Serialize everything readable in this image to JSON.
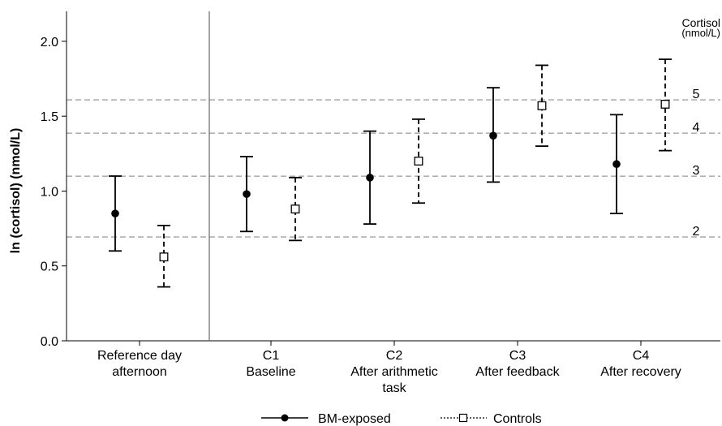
{
  "chart_data": {
    "type": "scatter",
    "ylabel": "ln (cortisol) (nmol/L)",
    "ylim": [
      0.0,
      2.2
    ],
    "yticks": [
      "0.0",
      "0.5",
      "1.0",
      "1.5",
      "2.0"
    ],
    "grid": false,
    "legend_position": "bottom",
    "categories": [
      {
        "lines": [
          "Reference day",
          "afternoon"
        ]
      },
      {
        "lines": [
          "C1",
          "Baseline"
        ]
      },
      {
        "lines": [
          "C2",
          "After arithmetic",
          "task"
        ]
      },
      {
        "lines": [
          "C3",
          "After feedback"
        ]
      },
      {
        "lines": [
          "C4",
          "After recovery"
        ]
      }
    ],
    "series": [
      {
        "name": "BM-exposed",
        "marker": "filled-circle",
        "line_style": "solid",
        "mean": [
          0.85,
          0.98,
          1.09,
          1.37,
          1.18
        ],
        "lower": [
          0.6,
          0.73,
          0.78,
          1.06,
          0.85
        ],
        "upper": [
          1.1,
          1.23,
          1.4,
          1.69,
          1.51
        ]
      },
      {
        "name": "Controls",
        "marker": "open-square",
        "line_style": "dashed",
        "mean": [
          0.56,
          0.88,
          1.2,
          1.57,
          1.58
        ],
        "lower": [
          0.36,
          0.67,
          0.92,
          1.3,
          1.27
        ],
        "upper": [
          0.77,
          1.09,
          1.48,
          1.84,
          1.88
        ]
      }
    ],
    "reference_lines": {
      "title_lines": [
        "Cortisol",
        "(nmol/L)"
      ],
      "lines": [
        {
          "label": "2",
          "value": 0.693
        },
        {
          "label": "3",
          "value": 1.099
        },
        {
          "label": "4",
          "value": 1.386
        },
        {
          "label": "5",
          "value": 1.609
        }
      ]
    }
  },
  "colors": {
    "series": "#000000",
    "reference_line": "#b0b0b0",
    "axis": "#000000",
    "separator": "#666666"
  }
}
